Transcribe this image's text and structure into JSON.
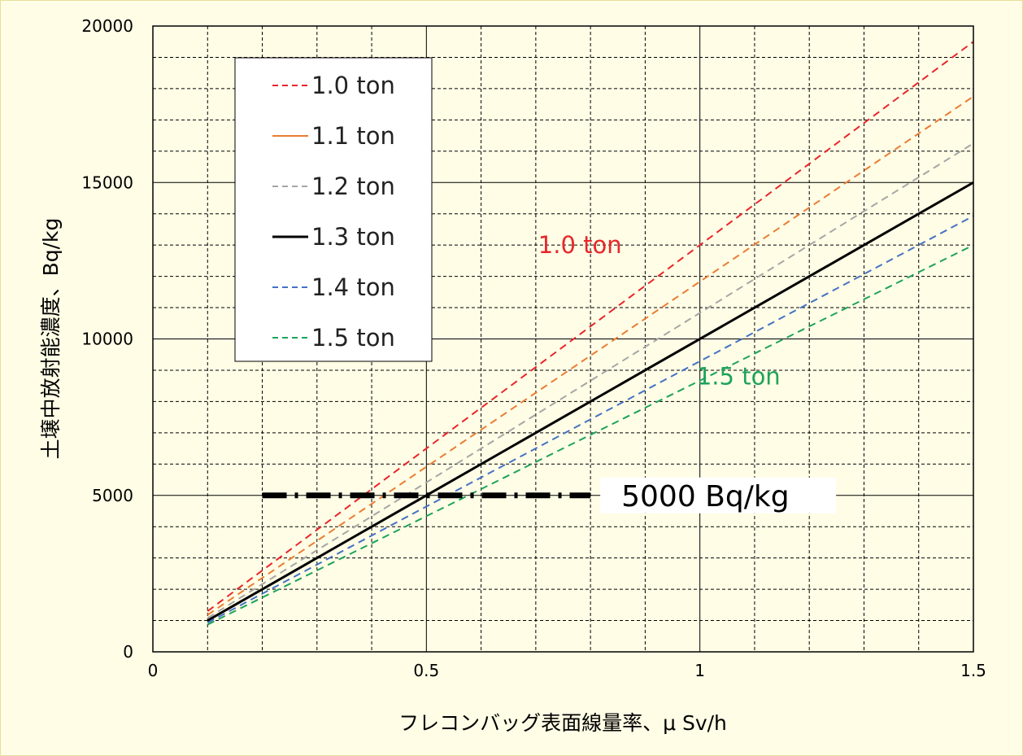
{
  "chart_data": {
    "type": "line",
    "xlabel": "フレコンバッグ表面線量率、μ Sv/h",
    "ylabel": "土壌中放射能濃度、Bq/kg",
    "xlim": [
      0,
      1.5
    ],
    "ylim": [
      0,
      20000
    ],
    "x_ticks": [
      "0",
      "0.5",
      "1",
      "1.5"
    ],
    "y_ticks": [
      "0",
      "5000",
      "10000",
      "15000",
      "20000"
    ],
    "grid": true,
    "legend_position": "top-left",
    "series": [
      {
        "name": "1.0 ton",
        "color": "#e8262b",
        "dash": "dashed",
        "x": [
          0.1,
          1.5
        ],
        "y": [
          1300,
          19500
        ]
      },
      {
        "name": "1.1 ton",
        "color": "#ea7d33",
        "dash": "solid-legend, dashed-line",
        "x": [
          0.1,
          1.5
        ],
        "y": [
          1180,
          17750
        ]
      },
      {
        "name": "1.2 ton",
        "color": "#a6a6a6",
        "dash": "dashed",
        "x": [
          0.1,
          1.5
        ],
        "y": [
          1080,
          16250
        ]
      },
      {
        "name": "1.3 ton",
        "color": "#000000",
        "dash": "solid",
        "x": [
          0.1,
          1.5
        ],
        "y": [
          1000,
          15000
        ]
      },
      {
        "name": "1.4 ton",
        "color": "#4472c4",
        "dash": "dashed",
        "x": [
          0.1,
          1.5
        ],
        "y": [
          930,
          13930
        ]
      },
      {
        "name": "1.5 ton",
        "color": "#1ea35a",
        "dash": "dashed",
        "x": [
          0.1,
          1.5
        ],
        "y": [
          870,
          13000
        ]
      }
    ],
    "reference_line": {
      "y": 5000,
      "x": [
        0.2,
        0.8
      ],
      "label": "5000 Bq/kg"
    },
    "annotations": [
      {
        "text": "1.0 ton",
        "color": "#e8262b",
        "x": 0.87,
        "y": 13000
      },
      {
        "text": "1.5 ton",
        "color": "#1ea35a",
        "x": 1.16,
        "y": 8800
      }
    ]
  }
}
